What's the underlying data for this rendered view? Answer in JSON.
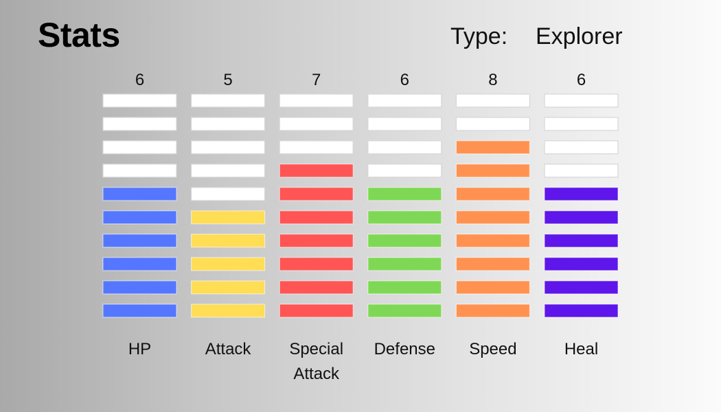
{
  "title": "Stats",
  "type_label": "Type:",
  "type_value": "Explorer",
  "chart_data": {
    "type": "bar",
    "segments": 10,
    "categories": [
      {
        "name": "HP",
        "lines": [
          "HP"
        ],
        "value": 6,
        "color": "#5577ff"
      },
      {
        "name": "Attack",
        "lines": [
          "Attack"
        ],
        "value": 5,
        "color": "#ffdd55"
      },
      {
        "name": "Special Attack",
        "lines": [
          "Special",
          "Attack"
        ],
        "value": 7,
        "color": "#ff5555"
      },
      {
        "name": "Defense",
        "lines": [
          "Defense"
        ],
        "value": 6,
        "color": "#7fd855"
      },
      {
        "name": "Speed",
        "lines": [
          "Speed"
        ],
        "value": 8,
        "color": "#ff9250"
      },
      {
        "name": "Heal",
        "lines": [
          "Heal"
        ],
        "value": 6,
        "color": "#5e16ea"
      }
    ],
    "empty_color": "#ffffff"
  }
}
